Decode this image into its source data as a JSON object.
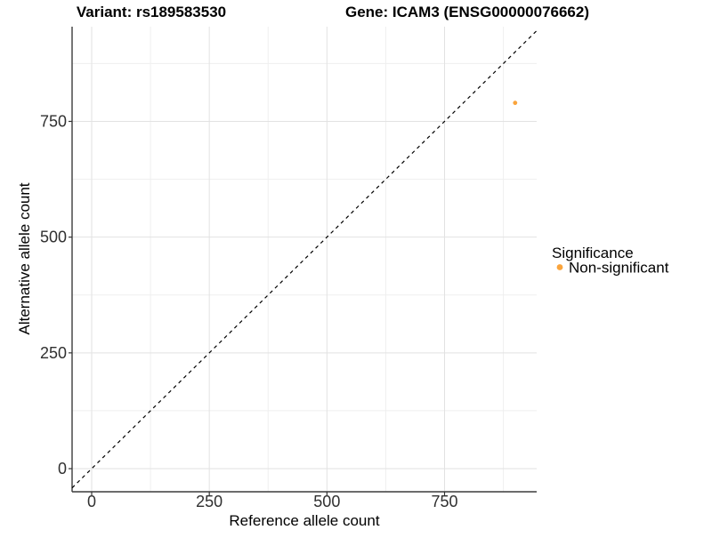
{
  "chart_data": {
    "type": "scatter",
    "title_variant": "Variant: rs189583530",
    "title_gene": "Gene: ICAM3 (ENSG00000076662)",
    "xlabel": "Reference allele count",
    "ylabel": "Alternative allele count",
    "x_ticks": [
      0,
      250,
      500,
      750
    ],
    "y_ticks": [
      0,
      250,
      500,
      750
    ],
    "x_minor_ticks": [
      125,
      375,
      625,
      875
    ],
    "y_minor_ticks": [
      125,
      375,
      625,
      875
    ],
    "xlim": [
      -42,
      946
    ],
    "ylim": [
      -50,
      954
    ],
    "grid": "on",
    "points": [
      {
        "x": 900,
        "y": 790,
        "series": "Non-significant"
      }
    ],
    "reference_line": {
      "kind": "identity y = x",
      "style": "dashed",
      "color": "#000000"
    },
    "legend": {
      "position": "right",
      "title": "Significance",
      "items": [
        {
          "label": "Non-significant",
          "color": "#FAA43C"
        }
      ]
    },
    "colors": {
      "point": "#FAA43C",
      "grid_major": "#e2e2e2",
      "grid_minor": "#efefef",
      "axis_line": "#3c3c3c",
      "tick_label": "#303030",
      "background": "#ffffff"
    }
  }
}
